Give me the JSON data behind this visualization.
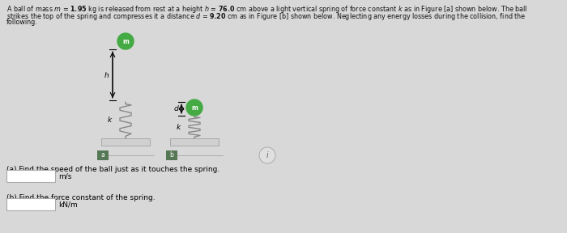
{
  "bg_color": "#d8d8d8",
  "inner_bg": "#e8e8e8",
  "text_color": "#000000",
  "ball_color": "#44aa44",
  "spring_color": "#888888",
  "base_color": "#d0d0d0",
  "label_bg": "#5a6e5a",
  "question_a": "(a) Find the speed of the ball just as it touches the spring.",
  "unit_a": "m/s",
  "question_b": "(b) Find the force constant of the spring.",
  "unit_b": "kN/m",
  "fig_width": 7.0,
  "fig_height": 2.88
}
